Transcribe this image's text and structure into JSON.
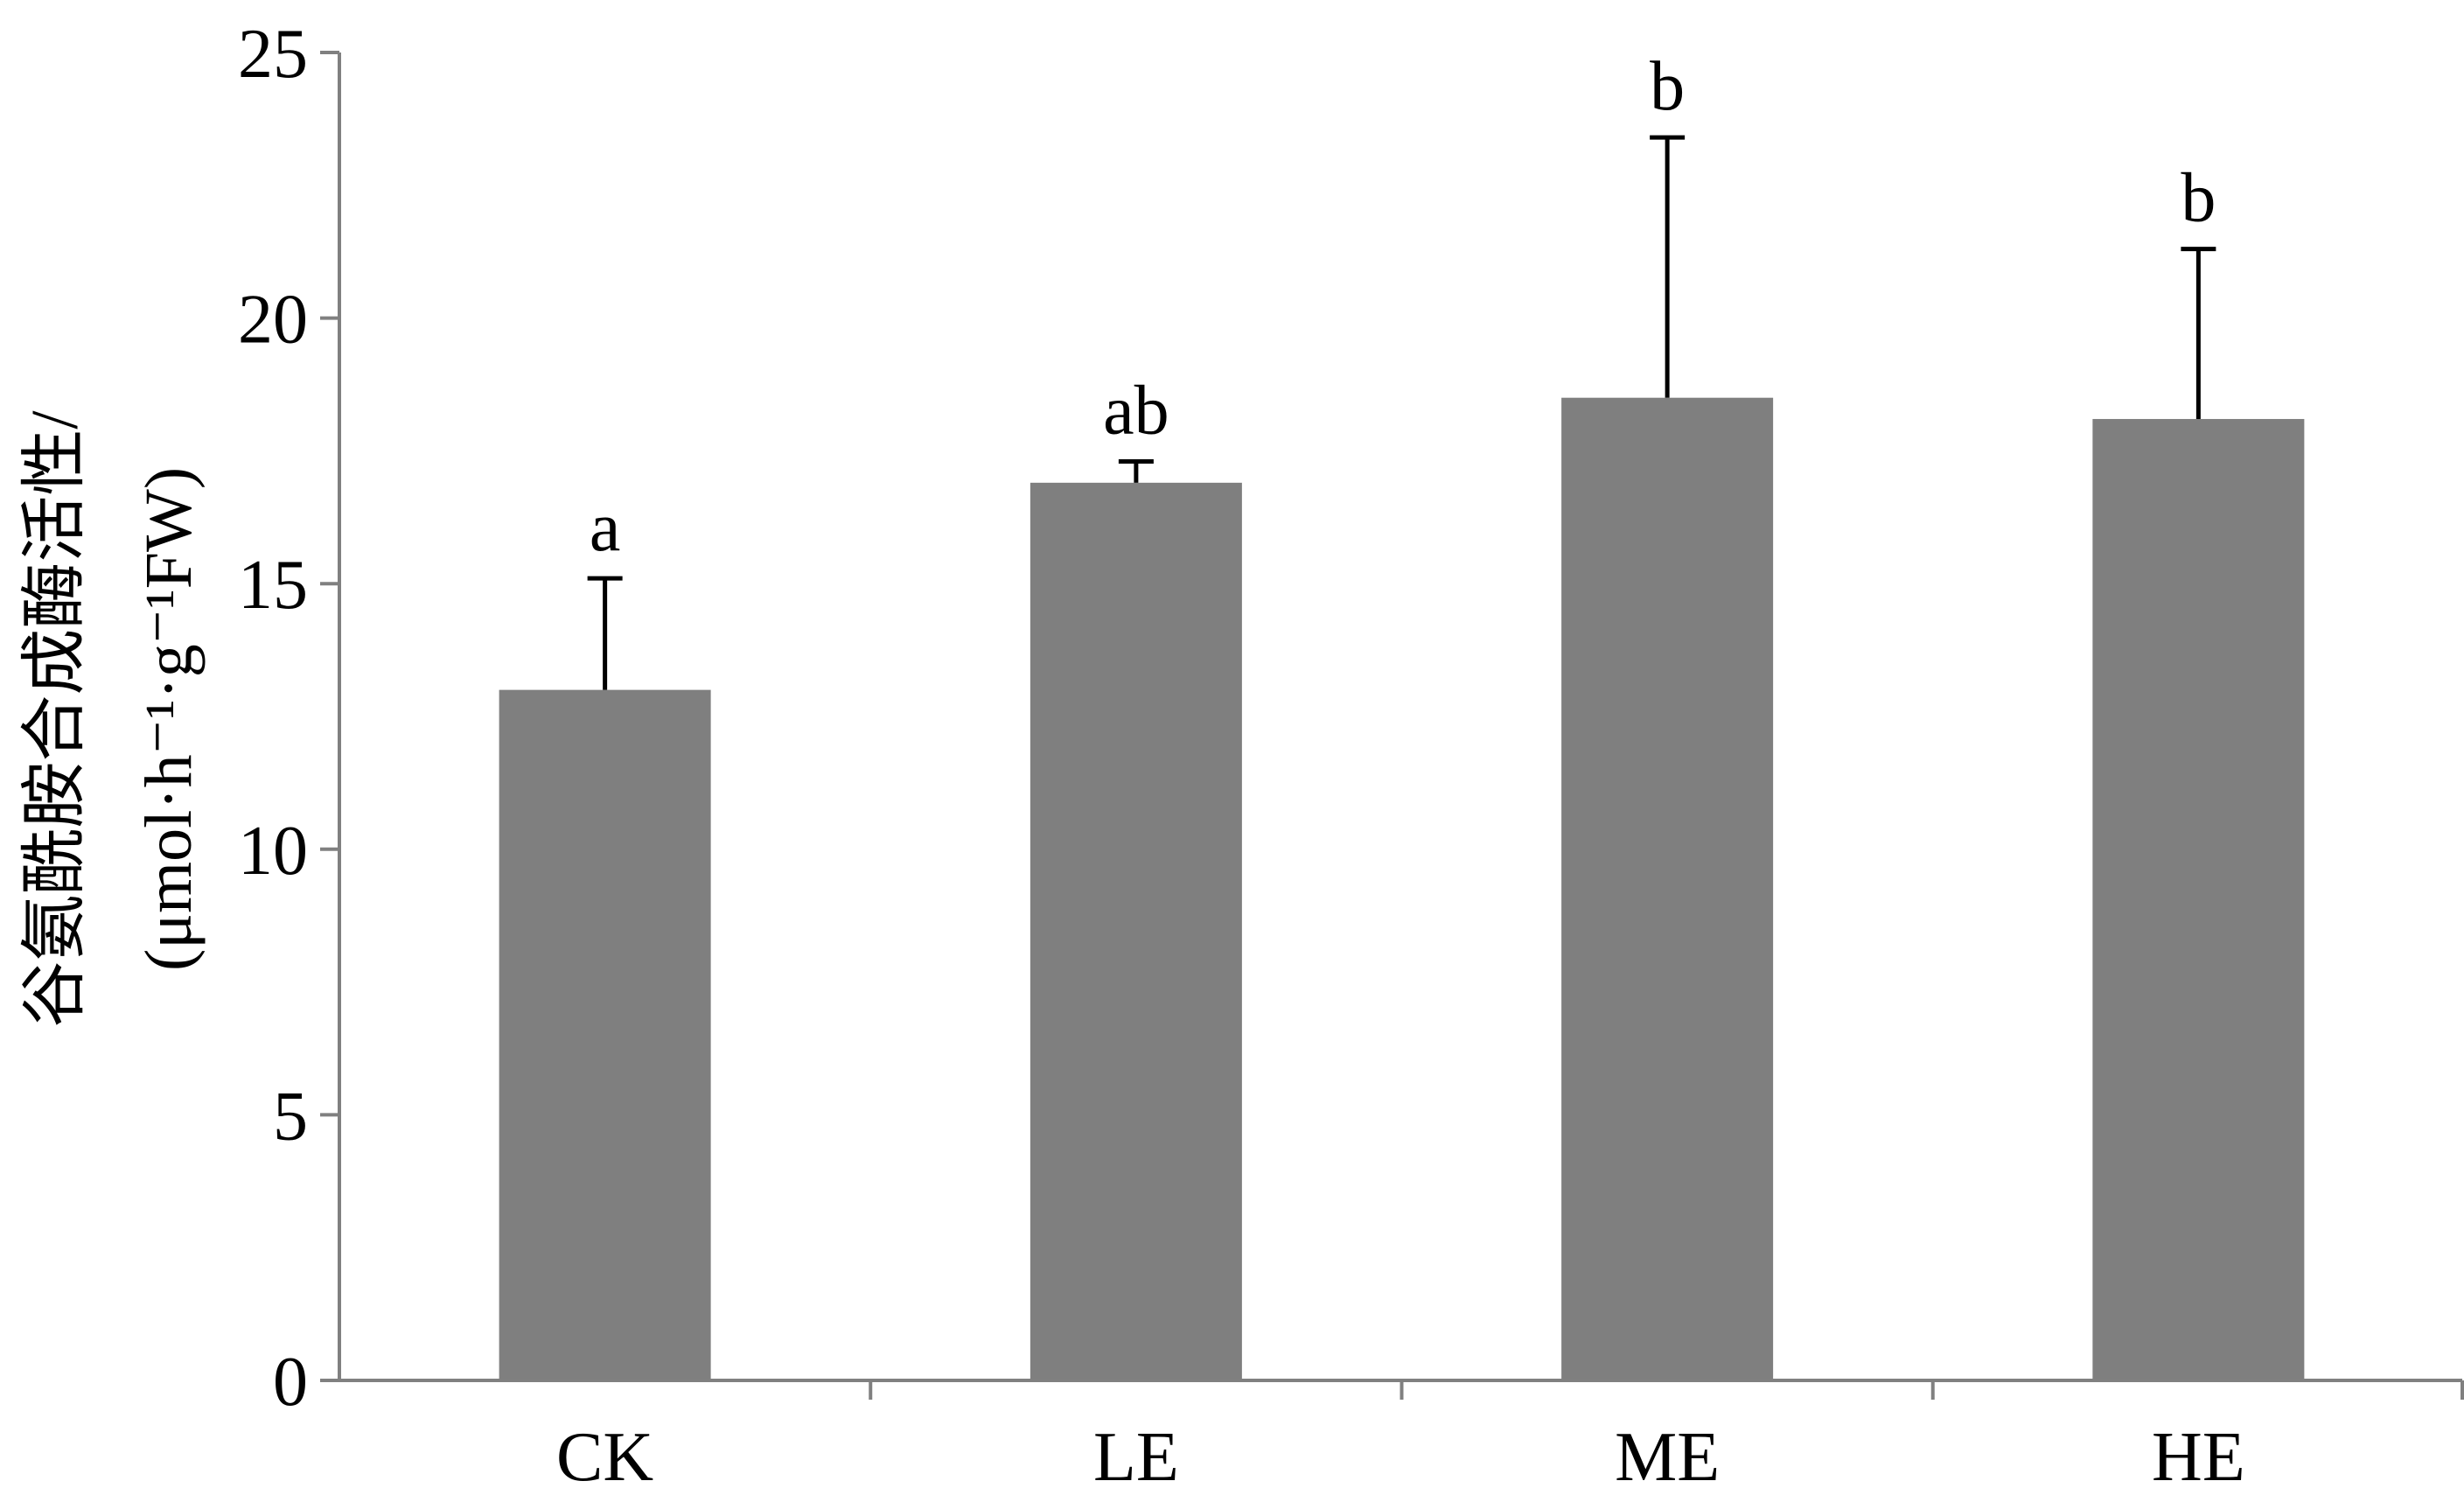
{
  "chart_data": {
    "type": "bar",
    "title": "",
    "xlabel": "",
    "ylabel_line1": "谷氨酰胺合成酶活性/",
    "ylabel_line2": "(μmol·h⁻¹·g⁻¹FW)",
    "categories": [
      "CK",
      "LE",
      "ME",
      "HE"
    ],
    "values": [
      13.0,
      16.9,
      18.5,
      18.1
    ],
    "error_upper": [
      2.1,
      0.4,
      4.9,
      3.2
    ],
    "significance": [
      "a",
      "ab",
      "b",
      "b"
    ],
    "ylim": [
      0,
      25
    ],
    "yticks": [
      0,
      5,
      10,
      15,
      20,
      25
    ],
    "ytick_labels": [
      "0",
      "5",
      "10",
      "15",
      "20",
      "25"
    ],
    "grid": false,
    "legend": "none",
    "bar_color": "#7f7f7f",
    "axis_color": "#808080",
    "error_bar_color": "#000000"
  }
}
